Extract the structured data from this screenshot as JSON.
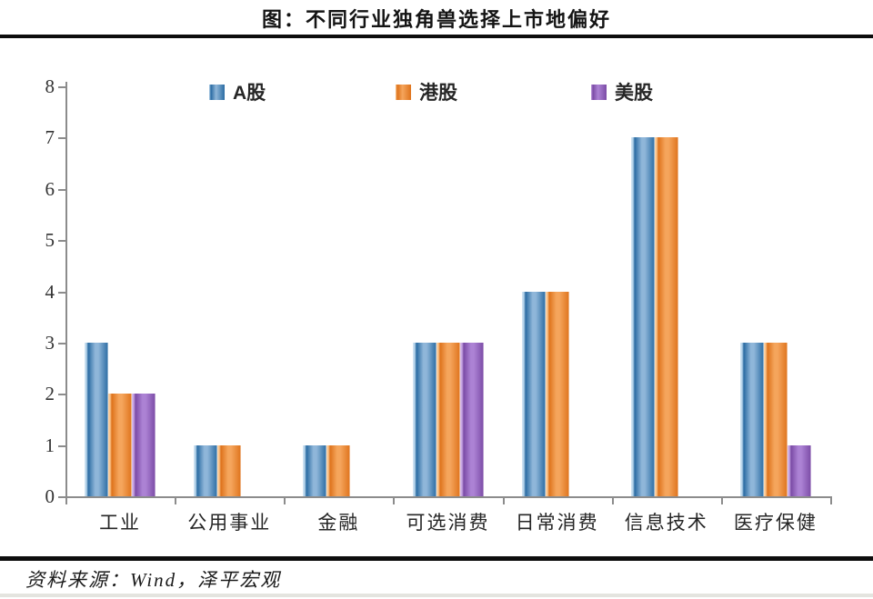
{
  "title": "图：不同行业独角兽选择上市地偏好",
  "source": "资料来源：Wind，泽平宏观",
  "colors": {
    "axis": "#8c8c8c",
    "rule": "#0d0d0d",
    "footer_rule": "#e4e4df"
  },
  "chart_data": {
    "type": "bar",
    "title": "图：不同行业独角兽选择上市地偏好",
    "categories": [
      "工业",
      "公用事业",
      "金融",
      "可选消费",
      "日常消费",
      "信息技术",
      "医疗保健"
    ],
    "series": [
      {
        "name": "A股",
        "key": "a-share",
        "color_edge": "#2B6CA3",
        "color_mid": "#8FB6D9",
        "color_hi": "#BBD7EC",
        "values": [
          3,
          1,
          1,
          3,
          4,
          7,
          3
        ]
      },
      {
        "name": "港股",
        "key": "hk-share",
        "color_edge": "#DE731C",
        "color_mid": "#F5A55C",
        "color_hi": "#FAC68F",
        "values": [
          2,
          1,
          1,
          3,
          4,
          7,
          3
        ]
      },
      {
        "name": "美股",
        "key": "us-share",
        "color_edge": "#7B4BA6",
        "color_mid": "#AC82D4",
        "color_hi": "#C7A6E3",
        "values": [
          2,
          0,
          0,
          3,
          0,
          0,
          1
        ]
      }
    ],
    "xlabel": "",
    "ylabel": "",
    "ylim": [
      0,
      8
    ],
    "yticks": [
      0,
      1,
      2,
      3,
      4,
      5,
      6,
      7,
      8
    ],
    "grid": false,
    "legend_position": "top-inside"
  }
}
